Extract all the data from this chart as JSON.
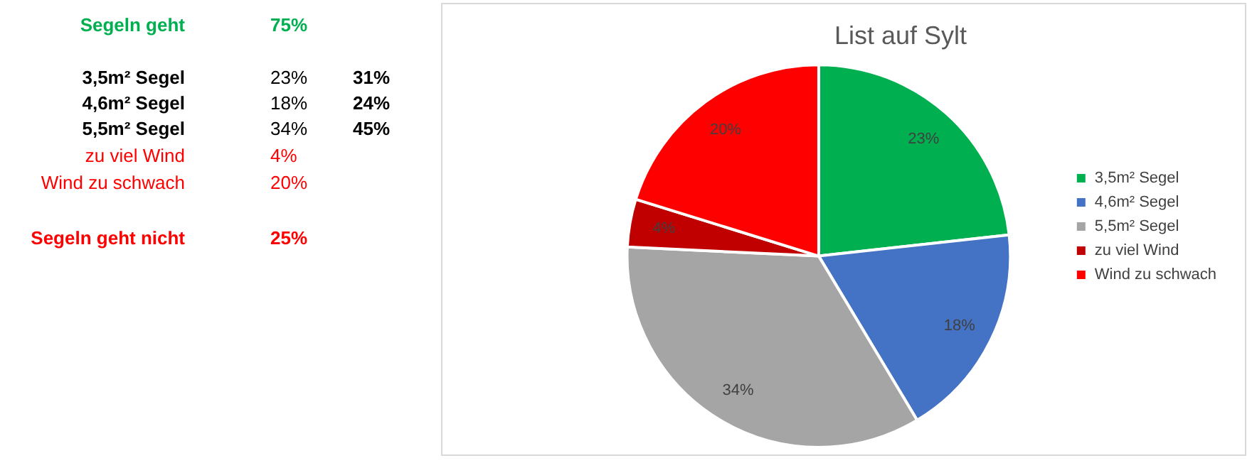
{
  "chart_data": [
    {
      "type": "other",
      "annotations": [
        "Segeln geht",
        "75%",
        "3,5m² Segel",
        "23%",
        "31%",
        "4,6m² Segel",
        "18%",
        "24%",
        "5,5m² Segel",
        "34%",
        "45%",
        "zu viel Wind",
        "4%",
        "Wind zu schwach",
        "20%",
        "Segeln geht nicht",
        "25%"
      ]
    },
    {
      "type": "pie",
      "title": "List auf Sylt",
      "categories": [
        "3,5m² Segel",
        "4,6m² Segel",
        "5,5m² Segel",
        "zu viel Wind",
        "Wind zu schwach"
      ],
      "values": [
        23,
        18,
        34,
        4,
        20
      ],
      "colors": [
        "#00b050",
        "#4472c4",
        "#a5a5a5",
        "#c00000",
        "#ff0000"
      ],
      "value_labels": [
        "23%",
        "18%",
        "34%",
        "4%",
        "20%"
      ],
      "legend": "right"
    }
  ]
}
